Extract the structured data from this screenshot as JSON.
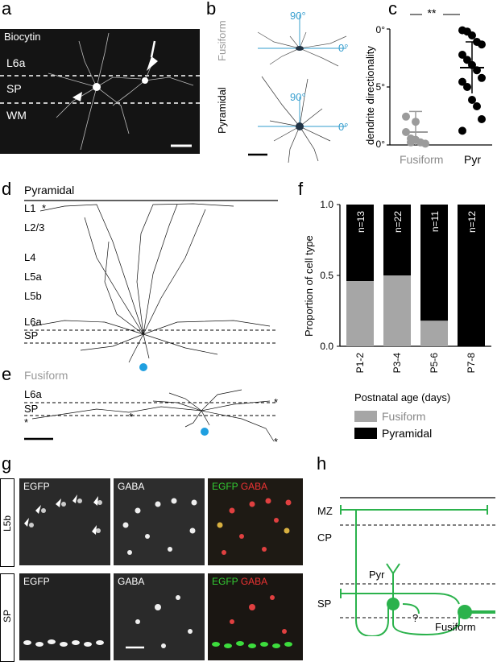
{
  "panels": {
    "a": {
      "letter": "a",
      "stain": "Biocytin",
      "layers": [
        "L6a",
        "SP",
        "WM"
      ]
    },
    "b": {
      "letter": "b",
      "cell_types": [
        "Fusiform",
        "Pyramidal"
      ],
      "angle_90": "90°",
      "angle_0": "0°"
    },
    "c": {
      "letter": "c",
      "significance": "**",
      "ylabel": "dendrite directionality",
      "yticks": [
        "90°",
        "45°",
        "0°"
      ],
      "categories": [
        "Fusiform",
        "Pyr"
      ]
    },
    "d": {
      "letter": "d",
      "title": "Pyramidal",
      "layers": [
        "L1",
        "L2/3",
        "L4",
        "L5a",
        "L5b",
        "L6a",
        "SP"
      ],
      "asterisk": "*"
    },
    "e": {
      "letter": "e",
      "title": "Fusiform",
      "layers": [
        "L6a",
        "SP"
      ],
      "asterisk": "*"
    },
    "f": {
      "letter": "f",
      "ylabel": "Proportion of cell type",
      "xlabel": "Postnatal age (days)",
      "yticks": [
        "1.0",
        "0.5",
        "0.0"
      ],
      "legend": [
        "Fusiform",
        "Pyramidal"
      ]
    },
    "g": {
      "letter": "g",
      "rows": [
        "L5b",
        "SP"
      ],
      "channels": [
        "EGFP",
        "GABA"
      ],
      "merge_green": "EGFP",
      "merge_red": "GABA"
    },
    "h": {
      "letter": "h",
      "layers": [
        "MZ",
        "CP",
        "SP"
      ],
      "pyr_label": "Pyr",
      "fusiform_label": "Fusiform",
      "question": "?"
    }
  },
  "chart_data": [
    {
      "type": "bar",
      "panel": "f",
      "categories": [
        "P1-2",
        "P3-4",
        "P5-6",
        "P7-8"
      ],
      "series": [
        {
          "name": "Fusiform",
          "values": [
            0.46,
            0.5,
            0.18,
            0.0
          ]
        },
        {
          "name": "Pyramidal",
          "values": [
            0.54,
            0.5,
            0.82,
            1.0
          ]
        }
      ],
      "annotations": [
        "n=13",
        "n=22",
        "n=11",
        "n=12"
      ],
      "ylabel": "Proportion of cell type",
      "xlabel": "Postnatal age (days)",
      "ylim": [
        0,
        1
      ],
      "stacked": true,
      "colors": {
        "Fusiform": "#a6a6a6",
        "Pyramidal": "#000000"
      }
    },
    {
      "type": "scatter",
      "panel": "c",
      "categories": [
        "Fusiform",
        "Pyr"
      ],
      "series": [
        {
          "name": "Fusiform",
          "points": [
            22,
            5,
            4,
            2,
            1,
            10,
            2,
            18
          ],
          "mean": 10,
          "sd": 16
        },
        {
          "name": "Pyr",
          "points": [
            89,
            88,
            85,
            80,
            78,
            70,
            66,
            62,
            58,
            52,
            49,
            45,
            35,
            30,
            20,
            11
          ],
          "mean": 60,
          "sd": 20
        }
      ],
      "ylabel": "dendrite directionality",
      "ylim": [
        0,
        90
      ],
      "colors": {
        "Fusiform": "#9b9b9b",
        "Pyr": "#000000"
      }
    }
  ]
}
